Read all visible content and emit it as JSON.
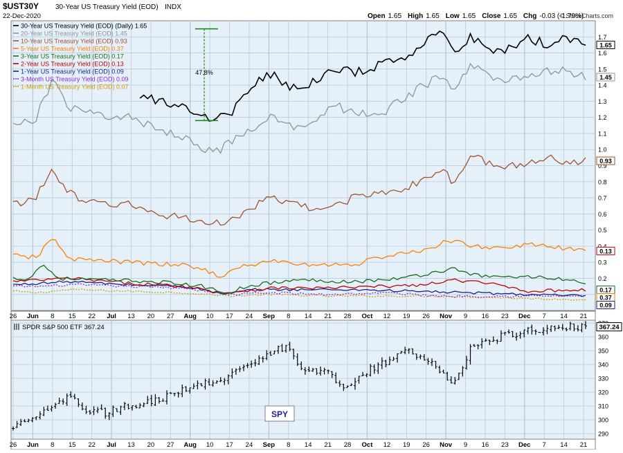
{
  "header": {
    "symbol": "$UST30Y",
    "name": "30-Year US Treasury Yield (EOD)",
    "exchange": "INDX",
    "date": "22-Dec-2020",
    "ohlc": [
      {
        "label": "Open",
        "value": "1.65"
      },
      {
        "label": "High",
        "value": "1.65"
      },
      {
        "label": "Low",
        "value": "1.65"
      },
      {
        "label": "Close",
        "value": "1.65"
      },
      {
        "label": "Chg",
        "value": "-0.03 (-1.79%)"
      }
    ],
    "brand": "© StockCharts.com"
  },
  "colors": {
    "panel_bg": "#e6f0f8",
    "grid": "#b4cbe0",
    "annotation": "#1a8a1a"
  },
  "chart_data": [
    {
      "type": "line",
      "panel": "yields",
      "legend_position": "top-left",
      "ylim": [
        0,
        1.8
      ],
      "y_ticks": [
        "0.1",
        "0.2",
        "0.3",
        "0.4",
        "0.5",
        "0.6",
        "0.7",
        "0.8",
        "0.9",
        "1.0",
        "1.1",
        "1.2",
        "1.3",
        "1.4",
        "1.5",
        "1.6",
        "1.7"
      ],
      "x_tick_labels": [
        "26",
        "Jun",
        "8",
        "15",
        "22",
        "Jul",
        "13",
        "20",
        "27",
        "Aug",
        "10",
        "17",
        "24",
        "Sep",
        "8",
        "14",
        "21",
        "28",
        "Oct",
        "12",
        "19",
        "26",
        "Nov",
        "9",
        "16",
        "23",
        "Dec",
        "7",
        "14",
        "21"
      ],
      "x_tick_kind": [
        "d",
        "m",
        "d",
        "d",
        "d",
        "m",
        "d",
        "d",
        "d",
        "m",
        "d",
        "d",
        "d",
        "m",
        "d",
        "d",
        "d",
        "d",
        "m",
        "d",
        "d",
        "d",
        "m",
        "d",
        "d",
        "d",
        "m",
        "d",
        "d",
        "d"
      ],
      "annotation": {
        "label": "47.8%",
        "from": 1.18,
        "to": 1.75
      },
      "series": [
        {
          "name": "1-Month US Treasury Yield (EOD)",
          "last": "0.07",
          "color": "#d49a00",
          "dash": true,
          "keys": [
            [
              0,
              0.12
            ],
            [
              0.04,
              0.11
            ],
            [
              0.1,
              0.13
            ],
            [
              0.2,
              0.12
            ],
            [
              0.3,
              0.11
            ],
            [
              0.38,
              0.09
            ],
            [
              0.45,
              0.1
            ],
            [
              0.55,
              0.09
            ],
            [
              0.65,
              0.09
            ],
            [
              0.75,
              0.09
            ],
            [
              0.85,
              0.08
            ],
            [
              0.95,
              0.07
            ],
            [
              1,
              0.07
            ]
          ]
        },
        {
          "name": "3-Month US Treasury Yield (EOD)",
          "last": "0.09",
          "color": "#8a2be2",
          "dash": true,
          "keys": [
            [
              0,
              0.15
            ],
            [
              0.05,
              0.15
            ],
            [
              0.1,
              0.16
            ],
            [
              0.2,
              0.15
            ],
            [
              0.3,
              0.14
            ],
            [
              0.38,
              0.1
            ],
            [
              0.45,
              0.11
            ],
            [
              0.55,
              0.1
            ],
            [
              0.65,
              0.11
            ],
            [
              0.75,
              0.09
            ],
            [
              0.85,
              0.09
            ],
            [
              0.95,
              0.09
            ],
            [
              1,
              0.09
            ]
          ]
        },
        {
          "name": "1-Year US Treasury Yield (EOD)",
          "last": "0.09",
          "color": "#1a237e",
          "keys": [
            [
              0,
              0.16
            ],
            [
              0.05,
              0.17
            ],
            [
              0.1,
              0.18
            ],
            [
              0.2,
              0.16
            ],
            [
              0.3,
              0.15
            ],
            [
              0.37,
              0.1
            ],
            [
              0.42,
              0.13
            ],
            [
              0.5,
              0.13
            ],
            [
              0.6,
              0.13
            ],
            [
              0.7,
              0.12
            ],
            [
              0.8,
              0.11
            ],
            [
              0.9,
              0.1
            ],
            [
              1,
              0.09
            ]
          ]
        },
        {
          "name": "2-Year US Treasury Yield (EOD)",
          "last": "0.13",
          "color": "#c00000",
          "keys": [
            [
              0,
              0.18
            ],
            [
              0.05,
              0.19
            ],
            [
              0.1,
              0.2
            ],
            [
              0.2,
              0.17
            ],
            [
              0.3,
              0.15
            ],
            [
              0.37,
              0.11
            ],
            [
              0.45,
              0.14
            ],
            [
              0.55,
              0.14
            ],
            [
              0.65,
              0.15
            ],
            [
              0.72,
              0.16
            ],
            [
              0.77,
              0.19
            ],
            [
              0.85,
              0.16
            ],
            [
              0.9,
              0.12
            ],
            [
              1,
              0.13
            ]
          ]
        },
        {
          "name": "3-Year US Treasury Yield (EOD)",
          "last": "0.17",
          "color": "#1a6b1a",
          "keys": [
            [
              0,
              0.2
            ],
            [
              0.03,
              0.2
            ],
            [
              0.05,
              0.29
            ],
            [
              0.08,
              0.2
            ],
            [
              0.15,
              0.19
            ],
            [
              0.25,
              0.18
            ],
            [
              0.33,
              0.15
            ],
            [
              0.37,
              0.11
            ],
            [
              0.42,
              0.16
            ],
            [
              0.5,
              0.19
            ],
            [
              0.6,
              0.18
            ],
            [
              0.68,
              0.2
            ],
            [
              0.77,
              0.26
            ],
            [
              0.82,
              0.21
            ],
            [
              0.9,
              0.21
            ],
            [
              0.95,
              0.2
            ],
            [
              1,
              0.17
            ]
          ]
        },
        {
          "name": "5-Year US Treasury Yield (EOD)",
          "last": "0.37",
          "color": "#ff7f00",
          "keys": [
            [
              0,
              0.34
            ],
            [
              0.04,
              0.33
            ],
            [
              0.07,
              0.45
            ],
            [
              0.1,
              0.32
            ],
            [
              0.2,
              0.3
            ],
            [
              0.3,
              0.28
            ],
            [
              0.34,
              0.25
            ],
            [
              0.36,
              0.21
            ],
            [
              0.4,
              0.27
            ],
            [
              0.45,
              0.31
            ],
            [
              0.52,
              0.28
            ],
            [
              0.6,
              0.29
            ],
            [
              0.65,
              0.34
            ],
            [
              0.72,
              0.37
            ],
            [
              0.76,
              0.44
            ],
            [
              0.8,
              0.4
            ],
            [
              0.85,
              0.39
            ],
            [
              0.9,
              0.41
            ],
            [
              0.95,
              0.39
            ],
            [
              1,
              0.37
            ]
          ]
        },
        {
          "name": "10-Year US Treasury Yield (EOD)",
          "last": "0.93",
          "color": "#a0522d",
          "keys": [
            [
              0,
              0.66
            ],
            [
              0.04,
              0.7
            ],
            [
              0.07,
              0.89
            ],
            [
              0.09,
              0.76
            ],
            [
              0.12,
              0.67
            ],
            [
              0.2,
              0.66
            ],
            [
              0.25,
              0.6
            ],
            [
              0.3,
              0.58
            ],
            [
              0.35,
              0.53
            ],
            [
              0.4,
              0.6
            ],
            [
              0.45,
              0.7
            ],
            [
              0.49,
              0.66
            ],
            [
              0.53,
              0.62
            ],
            [
              0.58,
              0.68
            ],
            [
              0.62,
              0.73
            ],
            [
              0.66,
              0.74
            ],
            [
              0.7,
              0.78
            ],
            [
              0.75,
              0.88
            ],
            [
              0.77,
              0.78
            ],
            [
              0.8,
              0.97
            ],
            [
              0.85,
              0.88
            ],
            [
              0.9,
              0.92
            ],
            [
              0.94,
              0.95
            ],
            [
              0.97,
              0.92
            ],
            [
              1,
              0.93
            ]
          ]
        },
        {
          "name": "20-Year US Treasury Yield (EOD)",
          "last": "1.45",
          "color": "#8c959c",
          "keys": [
            [
              0,
              1.14
            ],
            [
              0.04,
              1.2
            ],
            [
              0.07,
              1.45
            ],
            [
              0.09,
              1.28
            ],
            [
              0.12,
              1.23
            ],
            [
              0.2,
              1.2
            ],
            [
              0.25,
              1.13
            ],
            [
              0.3,
              1.08
            ],
            [
              0.35,
              0.98
            ],
            [
              0.4,
              1.08
            ],
            [
              0.45,
              1.2
            ],
            [
              0.49,
              1.13
            ],
            [
              0.53,
              1.2
            ],
            [
              0.56,
              1.28
            ],
            [
              0.6,
              1.22
            ],
            [
              0.65,
              1.24
            ],
            [
              0.7,
              1.36
            ],
            [
              0.75,
              1.46
            ],
            [
              0.77,
              1.36
            ],
            [
              0.8,
              1.53
            ],
            [
              0.85,
              1.42
            ],
            [
              0.9,
              1.47
            ],
            [
              0.94,
              1.49
            ],
            [
              0.97,
              1.48
            ],
            [
              1,
              1.45
            ]
          ]
        },
        {
          "name": "30-Year US Treasury Yield (EOD) (Daily)",
          "last": "1.65",
          "color": "#000000",
          "keys": [
            [
              0.22,
              1.33
            ],
            [
              0.25,
              1.31
            ],
            [
              0.3,
              1.27
            ],
            [
              0.35,
              1.18
            ],
            [
              0.38,
              1.22
            ],
            [
              0.4,
              1.35
            ],
            [
              0.45,
              1.47
            ],
            [
              0.49,
              1.38
            ],
            [
              0.53,
              1.42
            ],
            [
              0.56,
              1.5
            ],
            [
              0.6,
              1.48
            ],
            [
              0.65,
              1.53
            ],
            [
              0.7,
              1.61
            ],
            [
              0.75,
              1.76
            ],
            [
              0.77,
              1.6
            ],
            [
              0.8,
              1.7
            ],
            [
              0.85,
              1.6
            ],
            [
              0.9,
              1.69
            ],
            [
              0.94,
              1.65
            ],
            [
              0.97,
              1.7
            ],
            [
              1,
              1.65
            ]
          ]
        }
      ]
    },
    {
      "type": "ohlc",
      "panel": "price",
      "name": "SPDR S&P 500 ETF",
      "last": "367.24",
      "watermark": "SPY",
      "ylim": [
        286,
        372
      ],
      "y_ticks": [
        "290",
        "300",
        "310",
        "320",
        "330",
        "340",
        "350",
        "360",
        "370"
      ],
      "x_tick_labels": [
        "26",
        "Jun",
        "8",
        "15",
        "22",
        "Jul",
        "13",
        "20",
        "27",
        "Aug",
        "10",
        "17",
        "24",
        "Sep",
        "8",
        "14",
        "21",
        "28",
        "Oct",
        "12",
        "19",
        "26",
        "Nov",
        "9",
        "16",
        "23",
        "Dec",
        "7",
        "14",
        "21"
      ],
      "x_tick_kind": [
        "d",
        "m",
        "d",
        "d",
        "d",
        "m",
        "d",
        "d",
        "d",
        "m",
        "d",
        "d",
        "d",
        "m",
        "d",
        "d",
        "d",
        "d",
        "m",
        "d",
        "d",
        "d",
        "m",
        "d",
        "d",
        "d",
        "m",
        "d",
        "d",
        "d"
      ],
      "keys": [
        [
          0,
          295
        ],
        [
          0.04,
          302
        ],
        [
          0.1,
          318
        ],
        [
          0.12,
          308
        ],
        [
          0.16,
          305
        ],
        [
          0.2,
          310
        ],
        [
          0.25,
          314
        ],
        [
          0.3,
          322
        ],
        [
          0.33,
          326
        ],
        [
          0.38,
          332
        ],
        [
          0.42,
          340
        ],
        [
          0.45,
          348
        ],
        [
          0.48,
          354
        ],
        [
          0.5,
          338
        ],
        [
          0.55,
          334
        ],
        [
          0.58,
          322
        ],
        [
          0.62,
          336
        ],
        [
          0.66,
          343
        ],
        [
          0.68,
          350
        ],
        [
          0.72,
          345
        ],
        [
          0.75,
          332
        ],
        [
          0.77,
          327
        ],
        [
          0.8,
          352
        ],
        [
          0.85,
          360
        ],
        [
          0.9,
          364
        ],
        [
          0.95,
          368
        ],
        [
          0.98,
          367
        ]
      ]
    }
  ]
}
